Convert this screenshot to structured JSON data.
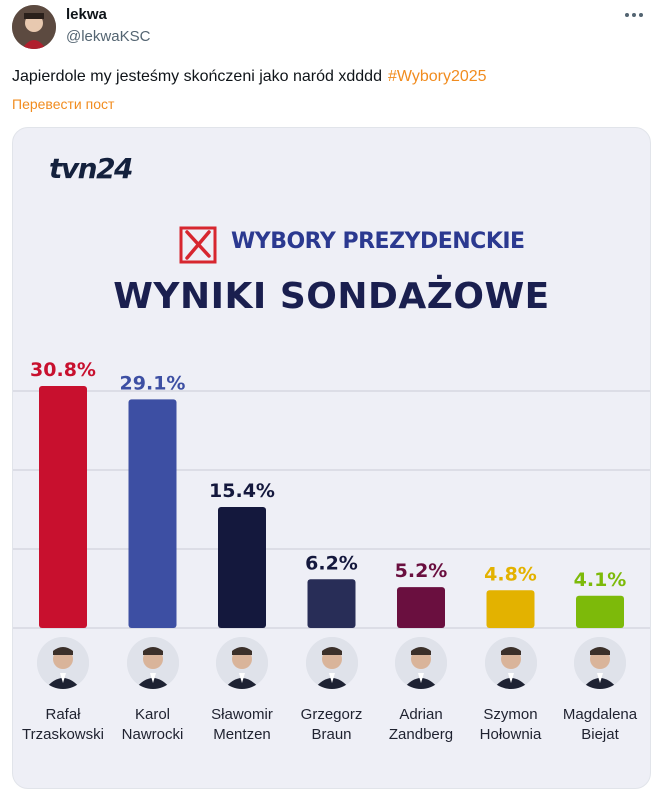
{
  "tweet": {
    "author_name": "lekwa",
    "author_handle": "@lekwaKSC",
    "more_icon": "more-dots-icon",
    "text": "Japierdole my jesteśmy skończeni jako naród xdddd",
    "hashtag": "#Wybory2025",
    "translate_label": "Перевести пост",
    "accent_color": "#f18c1f"
  },
  "card": {
    "logo": "tvn24",
    "subtitle": "WYBORY PREZYDENCKIE",
    "title": "WYNIKI SONDAŻOWE",
    "checkbox_icon": "checked-ballot-box-icon"
  },
  "chart_data": {
    "type": "bar",
    "categories": [
      "Rafał Trzaskowski",
      "Karol Nawrocki",
      "Sławomir Mentzen",
      "Grzegorz Braun",
      "Adrian Zandberg",
      "Szymon Hołownia",
      "Magdalena Biejat"
    ],
    "first_names": [
      "Rafał",
      "Karol",
      "Sławomir",
      "Grzegorz",
      "Adrian",
      "Szymon",
      "Magdalena"
    ],
    "last_names": [
      "Trzaskowski",
      "Nawrocki",
      "Mentzen",
      "Braun",
      "Zandberg",
      "Hołownia",
      "Biejat"
    ],
    "values": [
      30.8,
      29.1,
      15.4,
      6.2,
      5.2,
      4.8,
      4.1
    ],
    "labels": [
      "30.8%",
      "29.1%",
      "15.4%",
      "6.2%",
      "5.2%",
      "4.8%",
      "4.1%"
    ],
    "colors": [
      "#c8102e",
      "#3d4fa3",
      "#14183d",
      "#282d57",
      "#6a0f3f",
      "#e3b200",
      "#7dba0a"
    ],
    "ylim": [
      0,
      35
    ],
    "grid": true,
    "legend": "none"
  }
}
